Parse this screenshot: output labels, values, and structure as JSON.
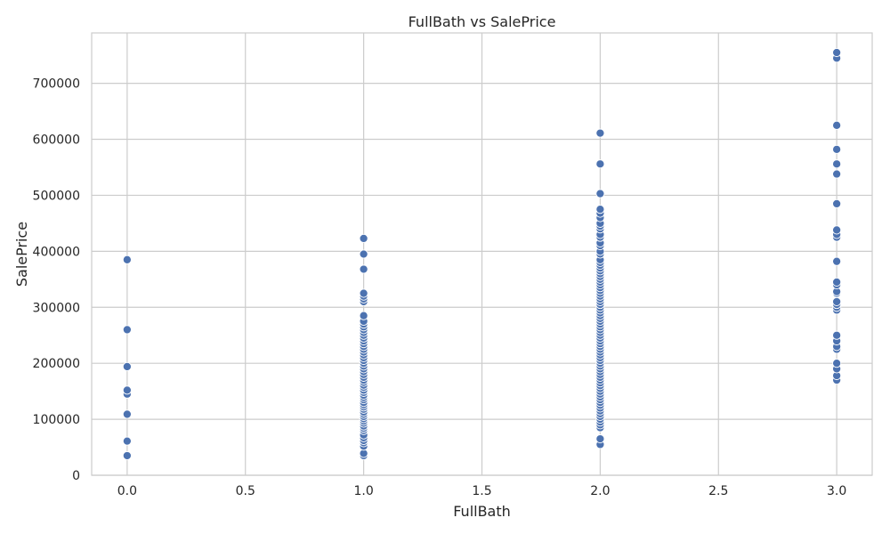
{
  "chart_data": {
    "type": "scatter",
    "title": "FullBath vs SalePrice",
    "xlabel": "FullBath",
    "ylabel": "SalePrice",
    "xlim": [
      -0.15,
      3.15
    ],
    "ylim": [
      0,
      790000
    ],
    "xticks": [
      0.0,
      0.5,
      1.0,
      1.5,
      2.0,
      2.5,
      3.0
    ],
    "xtick_labels": [
      "0.0",
      "0.5",
      "1.0",
      "1.5",
      "2.0",
      "2.5",
      "3.0"
    ],
    "yticks": [
      0,
      100000,
      200000,
      300000,
      400000,
      500000,
      600000,
      700000
    ],
    "ytick_labels": [
      "0",
      "100000",
      "200000",
      "300000",
      "400000",
      "500000",
      "600000",
      "700000"
    ],
    "grid": true,
    "marker_color": "#4c72b0",
    "series": [
      {
        "points": [
          [
            0,
            35000
          ],
          [
            0,
            61000
          ],
          [
            0,
            109000
          ],
          [
            0,
            145000
          ],
          [
            0,
            152000
          ],
          [
            0,
            194000
          ],
          [
            0,
            260000
          ],
          [
            0,
            385000
          ],
          [
            1,
            35000
          ],
          [
            1,
            39000
          ],
          [
            1,
            52000
          ],
          [
            1,
            58000
          ],
          [
            1,
            62000
          ],
          [
            1,
            67000
          ],
          [
            1,
            72000
          ],
          [
            1,
            80000
          ],
          [
            1,
            84000
          ],
          [
            1,
            88000
          ],
          [
            1,
            93000
          ],
          [
            1,
            97000
          ],
          [
            1,
            101000
          ],
          [
            1,
            105000
          ],
          [
            1,
            109000
          ],
          [
            1,
            113000
          ],
          [
            1,
            118000
          ],
          [
            1,
            122000
          ],
          [
            1,
            126000
          ],
          [
            1,
            130000
          ],
          [
            1,
            135000
          ],
          [
            1,
            139000
          ],
          [
            1,
            143000
          ],
          [
            1,
            148000
          ],
          [
            1,
            152000
          ],
          [
            1,
            157000
          ],
          [
            1,
            161000
          ],
          [
            1,
            166000
          ],
          [
            1,
            170000
          ],
          [
            1,
            175000
          ],
          [
            1,
            180000
          ],
          [
            1,
            185000
          ],
          [
            1,
            190000
          ],
          [
            1,
            195000
          ],
          [
            1,
            200000
          ],
          [
            1,
            205000
          ],
          [
            1,
            210000
          ],
          [
            1,
            215000
          ],
          [
            1,
            220000
          ],
          [
            1,
            225000
          ],
          [
            1,
            230000
          ],
          [
            1,
            235000
          ],
          [
            1,
            240000
          ],
          [
            1,
            245000
          ],
          [
            1,
            250000
          ],
          [
            1,
            255000
          ],
          [
            1,
            260000
          ],
          [
            1,
            265000
          ],
          [
            1,
            270000
          ],
          [
            1,
            275000
          ],
          [
            1,
            285000
          ],
          [
            1,
            310000
          ],
          [
            1,
            315000
          ],
          [
            1,
            320000
          ],
          [
            1,
            325000
          ],
          [
            1,
            368000
          ],
          [
            1,
            395000
          ],
          [
            1,
            423000
          ],
          [
            2,
            55000
          ],
          [
            2,
            65000
          ],
          [
            2,
            85000
          ],
          [
            2,
            90000
          ],
          [
            2,
            95000
          ],
          [
            2,
            100000
          ],
          [
            2,
            105000
          ],
          [
            2,
            110000
          ],
          [
            2,
            115000
          ],
          [
            2,
            120000
          ],
          [
            2,
            125000
          ],
          [
            2,
            130000
          ],
          [
            2,
            135000
          ],
          [
            2,
            140000
          ],
          [
            2,
            145000
          ],
          [
            2,
            150000
          ],
          [
            2,
            155000
          ],
          [
            2,
            160000
          ],
          [
            2,
            165000
          ],
          [
            2,
            170000
          ],
          [
            2,
            175000
          ],
          [
            2,
            180000
          ],
          [
            2,
            185000
          ],
          [
            2,
            190000
          ],
          [
            2,
            195000
          ],
          [
            2,
            200000
          ],
          [
            2,
            205000
          ],
          [
            2,
            210000
          ],
          [
            2,
            215000
          ],
          [
            2,
            220000
          ],
          [
            2,
            225000
          ],
          [
            2,
            230000
          ],
          [
            2,
            235000
          ],
          [
            2,
            240000
          ],
          [
            2,
            245000
          ],
          [
            2,
            250000
          ],
          [
            2,
            255000
          ],
          [
            2,
            260000
          ],
          [
            2,
            265000
          ],
          [
            2,
            270000
          ],
          [
            2,
            275000
          ],
          [
            2,
            280000
          ],
          [
            2,
            285000
          ],
          [
            2,
            290000
          ],
          [
            2,
            295000
          ],
          [
            2,
            300000
          ],
          [
            2,
            305000
          ],
          [
            2,
            310000
          ],
          [
            2,
            315000
          ],
          [
            2,
            320000
          ],
          [
            2,
            325000
          ],
          [
            2,
            330000
          ],
          [
            2,
            335000
          ],
          [
            2,
            340000
          ],
          [
            2,
            345000
          ],
          [
            2,
            350000
          ],
          [
            2,
            355000
          ],
          [
            2,
            360000
          ],
          [
            2,
            365000
          ],
          [
            2,
            370000
          ],
          [
            2,
            375000
          ],
          [
            2,
            380000
          ],
          [
            2,
            385000
          ],
          [
            2,
            395000
          ],
          [
            2,
            400000
          ],
          [
            2,
            410000
          ],
          [
            2,
            415000
          ],
          [
            2,
            425000
          ],
          [
            2,
            430000
          ],
          [
            2,
            440000
          ],
          [
            2,
            445000
          ],
          [
            2,
            450000
          ],
          [
            2,
            460000
          ],
          [
            2,
            468000
          ],
          [
            2,
            475000
          ],
          [
            2,
            503000
          ],
          [
            2,
            556000
          ],
          [
            2,
            611000
          ],
          [
            3,
            170000
          ],
          [
            3,
            178000
          ],
          [
            3,
            190000
          ],
          [
            3,
            200000
          ],
          [
            3,
            225000
          ],
          [
            3,
            230000
          ],
          [
            3,
            240000
          ],
          [
            3,
            250000
          ],
          [
            3,
            295000
          ],
          [
            3,
            300000
          ],
          [
            3,
            305000
          ],
          [
            3,
            310000
          ],
          [
            3,
            325000
          ],
          [
            3,
            328000
          ],
          [
            3,
            340000
          ],
          [
            3,
            345000
          ],
          [
            3,
            382000
          ],
          [
            3,
            425000
          ],
          [
            3,
            430000
          ],
          [
            3,
            438000
          ],
          [
            3,
            485000
          ],
          [
            3,
            538000
          ],
          [
            3,
            556000
          ],
          [
            3,
            582000
          ],
          [
            3,
            625000
          ],
          [
            3,
            745000
          ],
          [
            3,
            755000
          ]
        ]
      }
    ]
  }
}
